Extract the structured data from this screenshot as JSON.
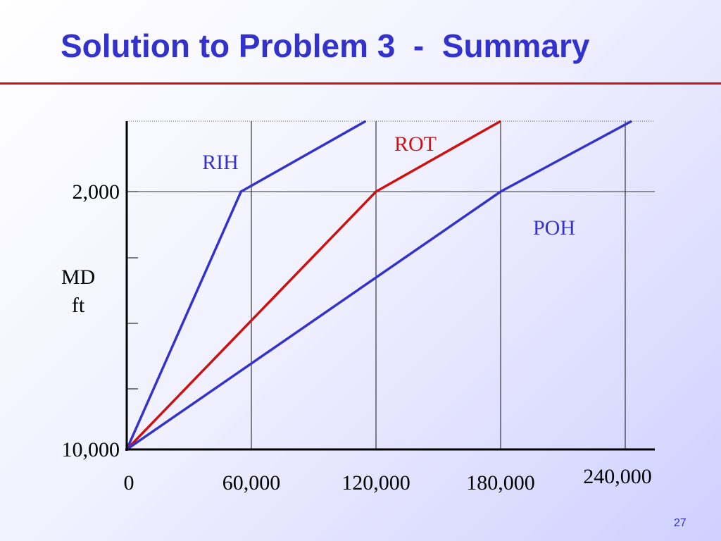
{
  "slide": {
    "title": "Solution to Problem 3  -  Summary",
    "page_number": "27"
  },
  "chart_data": {
    "type": "line",
    "title": "Solution to Problem 3  -  Summary",
    "ylabel": [
      "MD",
      "ft"
    ],
    "xlim": [
      0,
      250000
    ],
    "ylim_top": 0,
    "y_ticks": [
      {
        "value": 2000,
        "label": "2,000"
      },
      {
        "value": 10000,
        "label": "10,000"
      }
    ],
    "x_ticks": [
      {
        "value": 0,
        "label": "0"
      },
      {
        "value": 60000,
        "label": "60,000"
      },
      {
        "value": 120000,
        "label": "120,000"
      },
      {
        "value": 180000,
        "label": "180,000"
      },
      {
        "value": 240000,
        "label": "240,000"
      }
    ],
    "grid": true,
    "series": [
      {
        "name": "RIH",
        "color": "#3333cc",
        "points": [
          [
            0,
            10000
          ],
          [
            55000,
            2000
          ],
          [
            115000,
            0
          ]
        ]
      },
      {
        "name": "ROT",
        "color": "#cc1111",
        "points": [
          [
            0,
            10000
          ],
          [
            120000,
            2000
          ],
          [
            180000,
            0
          ]
        ]
      },
      {
        "name": "POH",
        "color": "#3333cc",
        "points": [
          [
            0,
            10000
          ],
          [
            180000,
            2000
          ],
          [
            243000,
            0
          ]
        ]
      }
    ]
  }
}
